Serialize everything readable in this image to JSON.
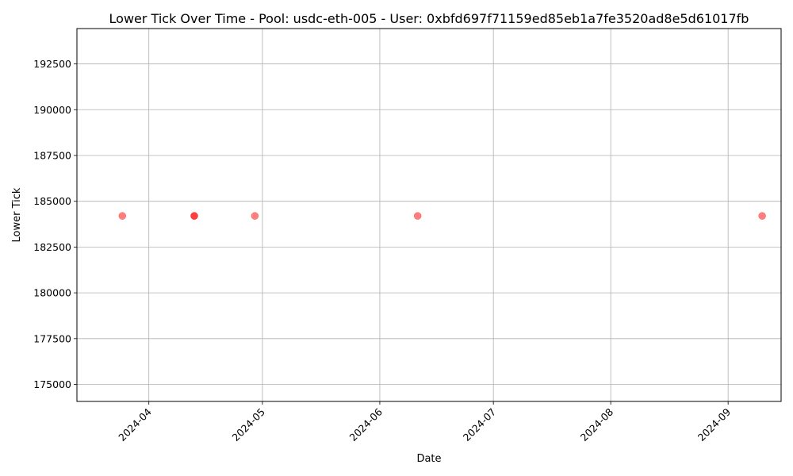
{
  "chart_data": {
    "type": "scatter",
    "title": "Lower Tick Over Time - Pool: usdc-eth-005 - User: 0xbfd697f71159ed85eb1a7fe3520ad8e5d61017fb",
    "xlabel": "Date",
    "ylabel": "Lower Tick",
    "x_type": "date",
    "xlim": [
      "2024-03-13",
      "2024-09-15"
    ],
    "ylim": [
      174070,
      194430
    ],
    "x_ticks": [
      "2024-04-01",
      "2024-05-01",
      "2024-06-01",
      "2024-07-01",
      "2024-08-01",
      "2024-09-01"
    ],
    "x_tick_labels": [
      "2024-04",
      "2024-05",
      "2024-06",
      "2024-07",
      "2024-08",
      "2024-09"
    ],
    "y_ticks": [
      175000,
      177500,
      180000,
      182500,
      185000,
      187500,
      190000,
      192500
    ],
    "y_tick_labels": [
      "175000",
      "177500",
      "180000",
      "182500",
      "185000",
      "187500",
      "190000",
      "192500"
    ],
    "grid": true,
    "marker_color": "#ff0000",
    "marker_alpha": 0.5,
    "points": [
      {
        "x": "2024-03-25",
        "y": 184200
      },
      {
        "x": "2024-04-13",
        "y": 184200
      },
      {
        "x": "2024-04-13",
        "y": 184200
      },
      {
        "x": "2024-04-29",
        "y": 184200
      },
      {
        "x": "2024-06-11",
        "y": 184200
      },
      {
        "x": "2024-09-10",
        "y": 184200
      }
    ]
  }
}
